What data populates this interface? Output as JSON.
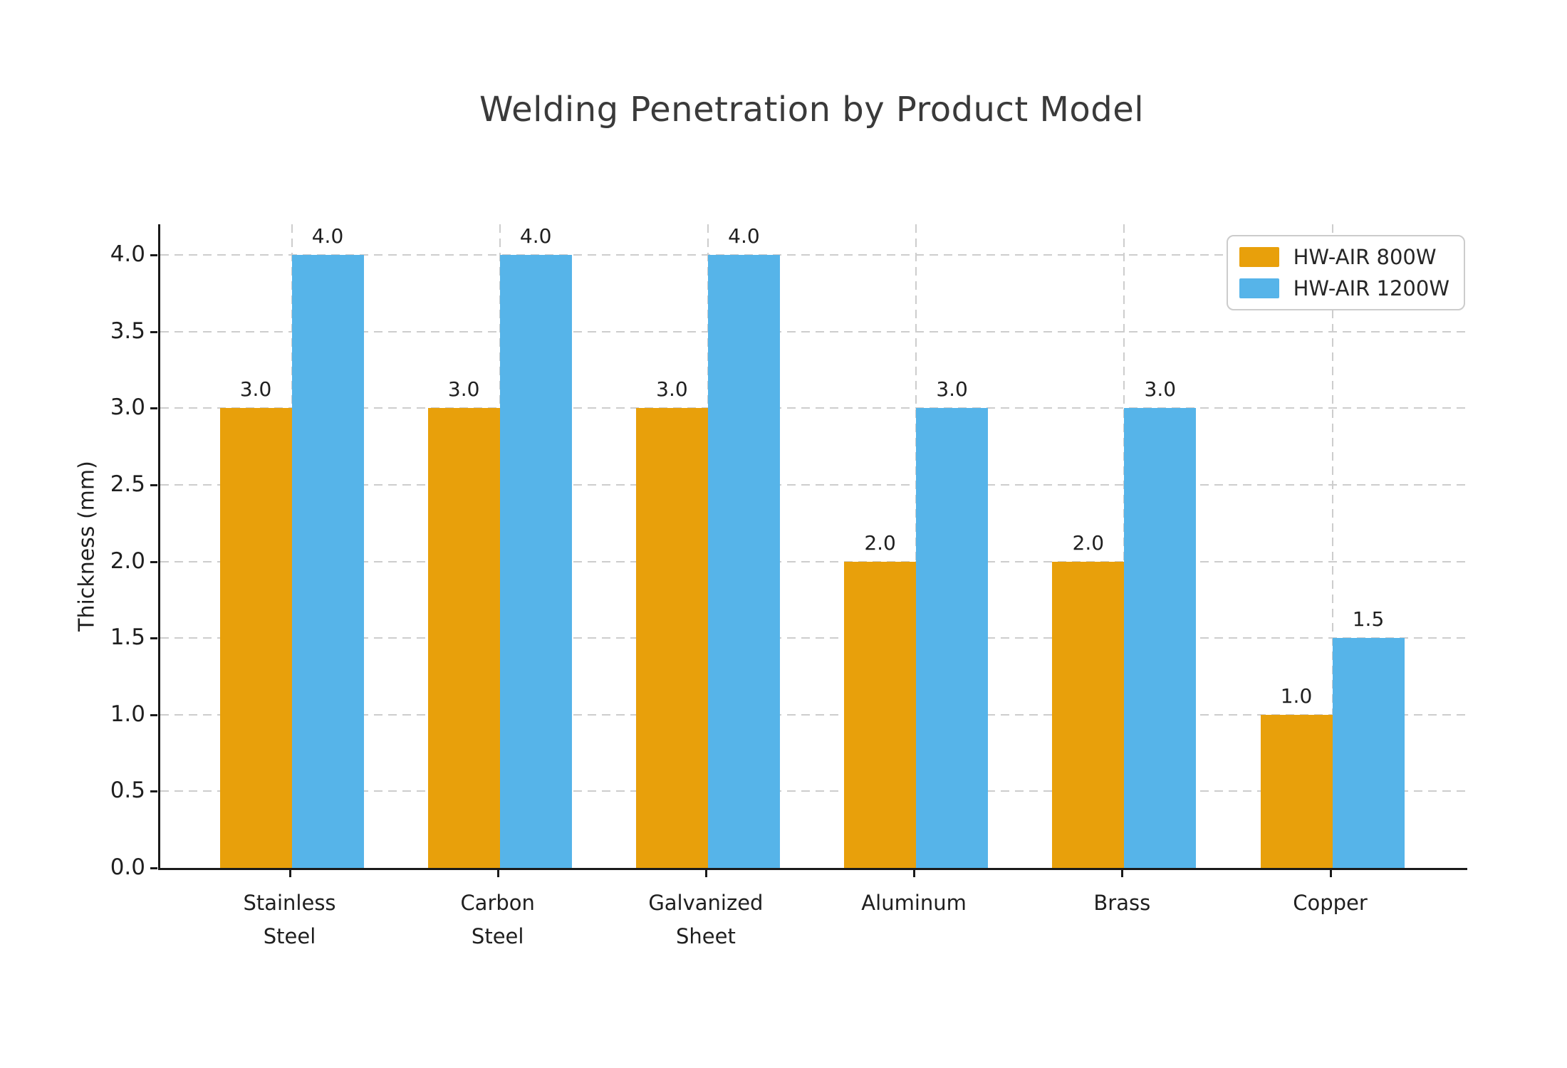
{
  "chart_data": {
    "type": "bar",
    "title": "Welding Penetration by Product Model",
    "xlabel": "",
    "ylabel": "Thickness (mm)",
    "categories": [
      "Stainless\nSteel",
      "Carbon\nSteel",
      "Galvanized\nSheet",
      "Aluminum",
      "Brass",
      "Copper"
    ],
    "series": [
      {
        "name": "HW-AIR 800W",
        "color": "#E8A00B",
        "values": [
          3.0,
          3.0,
          3.0,
          2.0,
          2.0,
          1.0
        ]
      },
      {
        "name": "HW-AIR 1200W",
        "color": "#56B4E9",
        "values": [
          4.0,
          4.0,
          4.0,
          3.0,
          3.0,
          1.5
        ]
      }
    ],
    "ylim": [
      0,
      4.2
    ],
    "yticks": [
      0.0,
      0.5,
      1.0,
      1.5,
      2.0,
      2.5,
      3.0,
      3.5,
      4.0
    ],
    "grid": "dashed horizontal and vertical",
    "legend_position": "upper right",
    "bar_value_labels": "one decimal above each bar"
  },
  "colors": {
    "spine": "#1a1a1a",
    "grid": "#cdcdcd",
    "text": "#1f1f1f",
    "title": "#3a3a3a",
    "legend_border": "#cccccc"
  }
}
